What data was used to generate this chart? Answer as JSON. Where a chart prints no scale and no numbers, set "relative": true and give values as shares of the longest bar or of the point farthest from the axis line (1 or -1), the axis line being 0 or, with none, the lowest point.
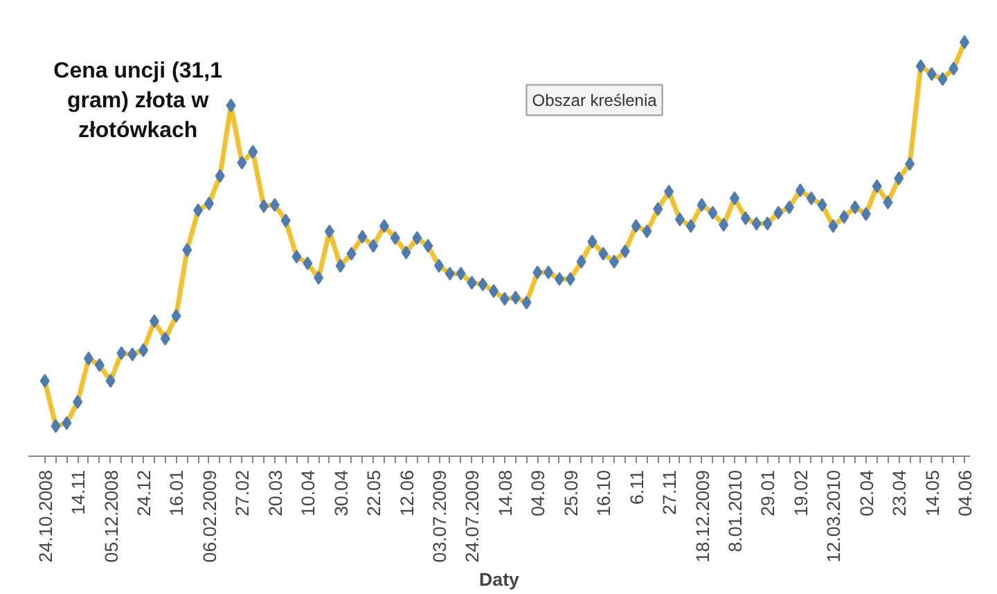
{
  "chart_data": {
    "type": "line",
    "title": "Cena uncji (31,1 gram) złota w złotówkach",
    "xlabel": "Daty",
    "relative": true,
    "marker": "diamond",
    "line_style": "solid",
    "grid": false,
    "annotations": [
      "Obszar kreślenia"
    ],
    "categories": [
      "24.10.2008",
      null,
      null,
      "14.11",
      null,
      null,
      "05.12.2008",
      null,
      null,
      "24.12",
      null,
      null,
      "16.01",
      null,
      null,
      "06.02.2009",
      null,
      null,
      "27.02",
      null,
      null,
      "20.03",
      null,
      null,
      "10.04",
      null,
      null,
      "30.04",
      null,
      null,
      "22.05",
      null,
      null,
      "12.06",
      null,
      null,
      "03.07.2009",
      null,
      null,
      "24.07.2009",
      null,
      null,
      "14.08",
      null,
      null,
      "04.09",
      null,
      null,
      "25.09",
      null,
      null,
      "16.10",
      null,
      null,
      "6.11",
      null,
      null,
      "27.11",
      null,
      null,
      "18.12.2009",
      null,
      null,
      "8.01.2010",
      null,
      null,
      "29.01",
      null,
      null,
      "19.02",
      null,
      null,
      "12.03.2010",
      null,
      null,
      "02.04",
      null,
      null,
      "23.04",
      null,
      null,
      "14.05",
      null,
      null,
      "04.06"
    ],
    "series": [
      {
        "color": "#f2c12e",
        "values": [
          0.182,
          0.073,
          0.08,
          0.131,
          0.236,
          0.22,
          0.182,
          0.249,
          0.246,
          0.256,
          0.326,
          0.284,
          0.339,
          0.498,
          0.594,
          0.61,
          0.677,
          0.847,
          0.709,
          0.735,
          0.604,
          0.607,
          0.569,
          0.482,
          0.466,
          0.431,
          0.543,
          0.46,
          0.489,
          0.53,
          0.508,
          0.556,
          0.527,
          0.492,
          0.527,
          0.508,
          0.46,
          0.441,
          0.441,
          0.419,
          0.415,
          0.399,
          0.38,
          0.383,
          0.371,
          0.444,
          0.444,
          0.428,
          0.428,
          0.47,
          0.518,
          0.489,
          0.47,
          0.495,
          0.556,
          0.543,
          0.597,
          0.639,
          0.572,
          0.556,
          0.607,
          0.588,
          0.559,
          0.623,
          0.575,
          0.562,
          0.562,
          0.588,
          0.601,
          0.642,
          0.623,
          0.607,
          0.556,
          0.578,
          0.601,
          0.585,
          0.652,
          0.613,
          0.671,
          0.706,
          0.942,
          0.923,
          0.911,
          0.936,
          1.0
        ]
      }
    ]
  }
}
